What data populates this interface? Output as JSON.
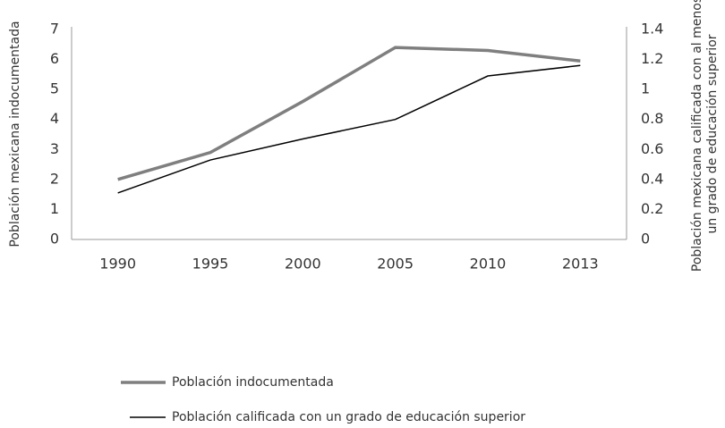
{
  "chart_data": {
    "type": "line",
    "categories": [
      "1990",
      "1995",
      "2000",
      "2005",
      "2010",
      "2013"
    ],
    "series": [
      {
        "name": "Población indocumentada",
        "color": "#7f7f7f",
        "values": [
          2.0,
          2.9,
          4.6,
          6.4,
          6.3,
          5.95
        ]
      },
      {
        "name": "Población calificada con un grado de educación superior",
        "color": "#000000",
        "axis": "y2",
        "values": [
          0.31,
          0.53,
          0.67,
          0.8,
          1.09,
          1.16
        ]
      }
    ],
    "ylabel": "Población mexicana indocumentada",
    "y2label": [
      "Población mexicana calificada con al menos",
      "un grado de educación superior"
    ],
    "ylim": [
      0,
      7
    ],
    "yticks": [
      0,
      1,
      2,
      3,
      4,
      5,
      6,
      7
    ],
    "y2lim": [
      0,
      1.4
    ],
    "y2ticks": [
      0,
      0.2,
      0.4,
      0.6,
      0.8,
      1,
      1.2,
      1.4
    ]
  }
}
